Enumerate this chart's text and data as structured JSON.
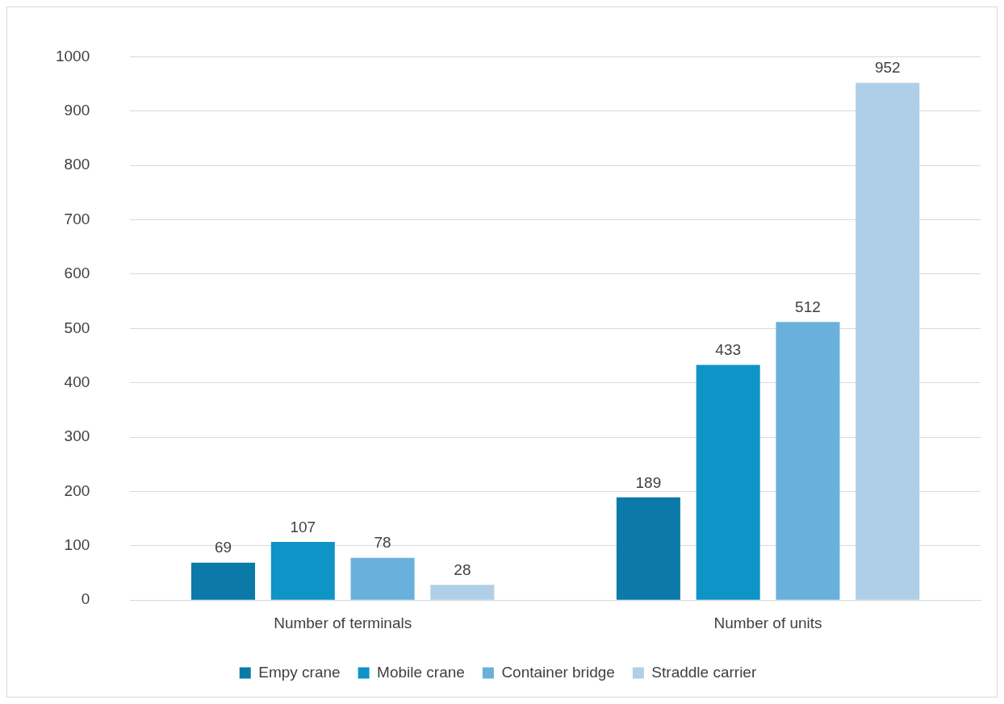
{
  "chart_data": {
    "type": "bar",
    "categories": [
      "Number of terminals",
      "Number of units"
    ],
    "series": [
      {
        "name": "Empy crane",
        "color": "#0b7aa8",
        "values": [
          69,
          189
        ]
      },
      {
        "name": "Mobile crane",
        "color": "#0e94c7",
        "values": [
          107,
          433
        ]
      },
      {
        "name": "Container bridge",
        "color": "#6ab0dc",
        "values": [
          78,
          512
        ]
      },
      {
        "name": "Straddle carrier",
        "color": "#aecfe7",
        "values": [
          28,
          952
        ]
      }
    ],
    "ylim": [
      0,
      1000
    ],
    "yticks": [
      0,
      100,
      200,
      300,
      400,
      500,
      600,
      700,
      800,
      900,
      1000
    ],
    "grid": "y",
    "legend": "bottom",
    "data_labels": true
  }
}
